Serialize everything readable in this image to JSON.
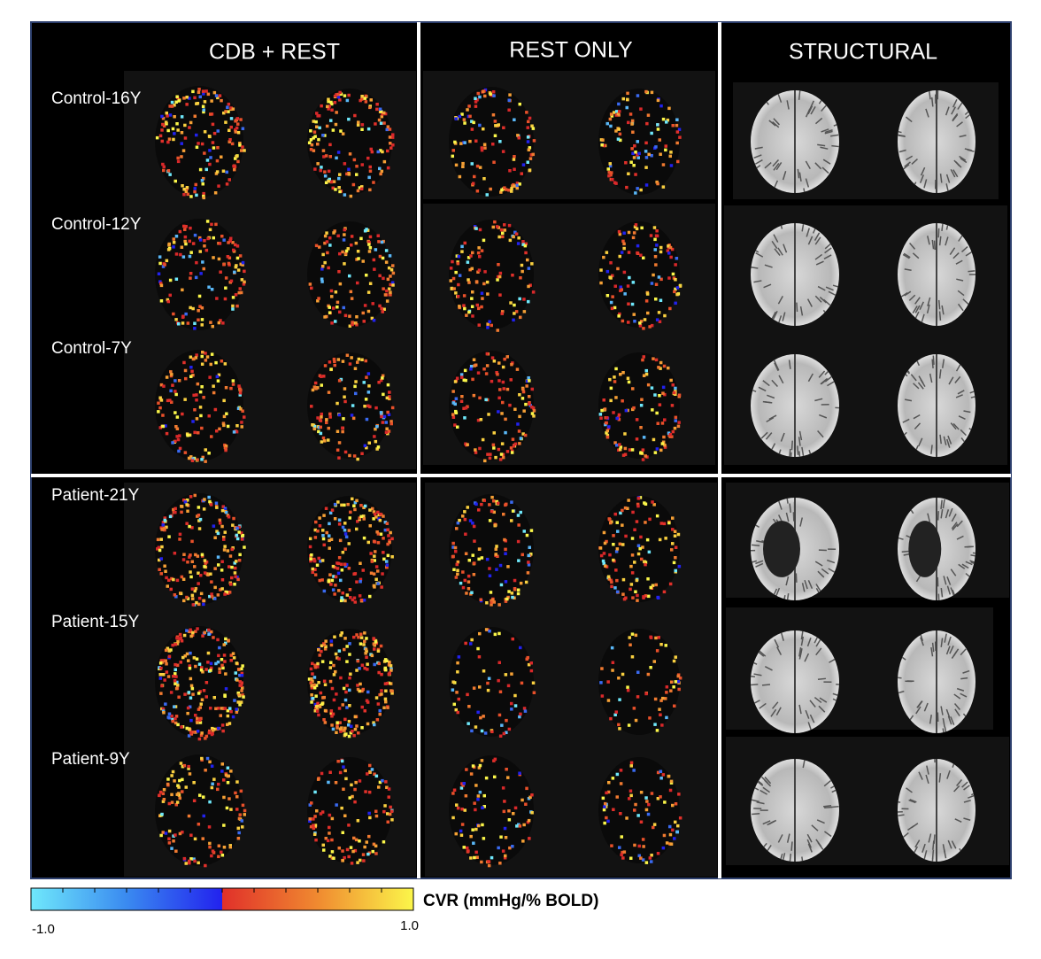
{
  "columns": [
    "CDB + REST",
    "REST ONLY",
    "STRUCTURAL"
  ],
  "rows": [
    "Control-16Y",
    "Control-12Y",
    "Control-7Y",
    "Patient-21Y",
    "Patient-15Y",
    "Patient-9Y"
  ],
  "colorbar": {
    "label": "CVR (mmHg/% BOLD)",
    "ticks": [
      "-1.0",
      "1.0"
    ]
  }
}
